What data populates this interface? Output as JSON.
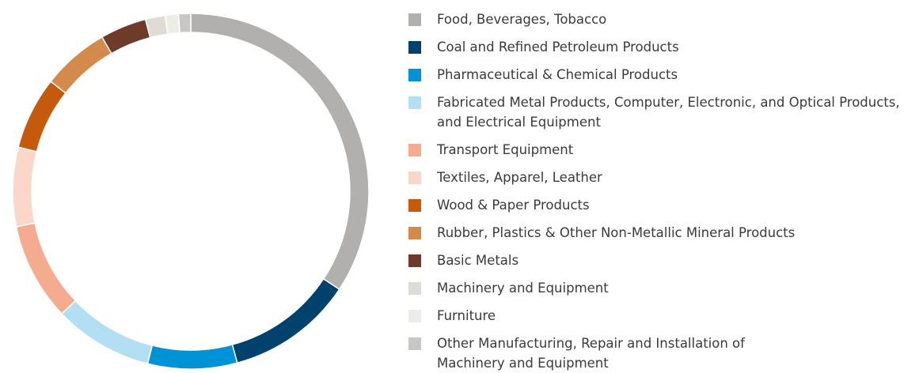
{
  "chart_data": {
    "type": "pie",
    "categories": [
      "Food, Beverages, Tobacco",
      "Coal and Refined Petroleum Products",
      "Pharmaceutical & Chemical Products",
      "Fabricated Metal Products, Computer, Electronic, and Optical Products, and Electrical Equipment",
      "Transport Equipment",
      "Textiles, Apparel, Leather",
      "Wood & Paper Products",
      "Rubber, Plastics & Other Non-Metallic Mineral Products",
      "Basic Metals",
      "Machinery and Equipment",
      "Furniture",
      "Other Manufacturing, Repair and Installation of Machinery and Equipment"
    ],
    "values": [
      34.3,
      11.5,
      8.1,
      9.0,
      8.9,
      7.2,
      6.6,
      6.1,
      4.2,
      1.8,
      1.2,
      1.1
    ],
    "colors": [
      "#b1b0ae",
      "#00426e",
      "#0092d6",
      "#b3dff4",
      "#f4ab8e",
      "#fad7c8",
      "#c55a0c",
      "#d48a4b",
      "#6e3a29",
      "#e0dbd5",
      "#eeece8",
      "#c8c7c5"
    ],
    "donut": true
  }
}
